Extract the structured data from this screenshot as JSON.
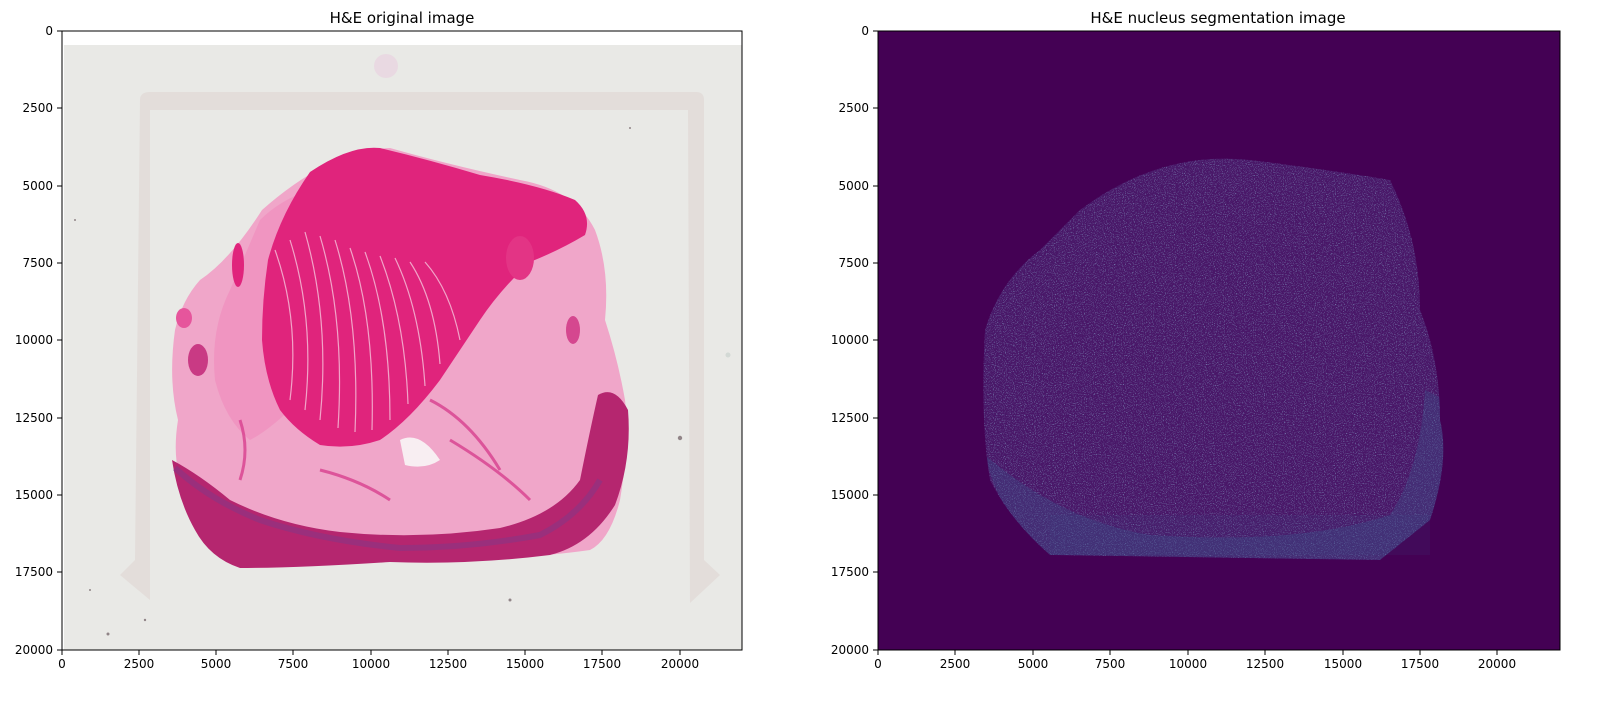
{
  "figure": {
    "panels": [
      {
        "title": "H&E original image",
        "x_ticks": [
          "0",
          "2500",
          "5000",
          "7500",
          "10000",
          "12500",
          "15000",
          "17500",
          "20000"
        ],
        "y_ticks": [
          "0",
          "2500",
          "5000",
          "7500",
          "10000",
          "12500",
          "15000",
          "17500",
          "20000"
        ]
      },
      {
        "title": "H&E nucleus segmentation image",
        "x_ticks": [
          "0",
          "2500",
          "5000",
          "7500",
          "10000",
          "12500",
          "15000",
          "17500",
          "20000"
        ],
        "y_ticks": [
          "0",
          "2500",
          "5000",
          "7500",
          "10000",
          "12500",
          "15000",
          "17500",
          "20000"
        ]
      }
    ],
    "colors": {
      "slide_background": "#e9e9e6",
      "tissue_stroma": "#f0a6c9",
      "tissue_muscle": "#e0247c",
      "tissue_mucosa": "#b5266f",
      "seg_background": "#440154",
      "seg_nuclei": "#3b528b"
    }
  }
}
